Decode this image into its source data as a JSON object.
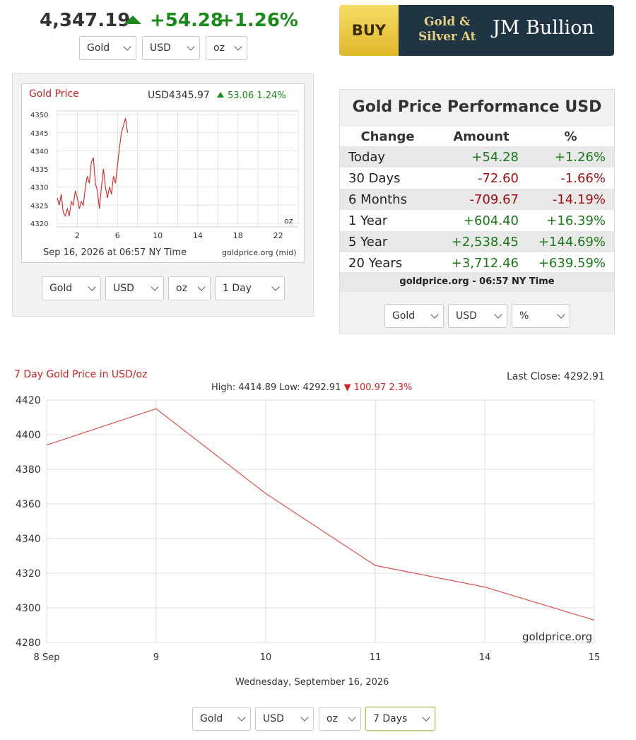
{
  "ticker": {
    "price": "4,347.19",
    "change": "+54.28",
    "change_pct": "+1.26%",
    "direction": "up"
  },
  "top_selects": {
    "metal": "Gold",
    "currency": "USD",
    "unit": "oz"
  },
  "ad": {
    "buy": "BUY",
    "line1": "Gold &",
    "line2": "Silver At",
    "brand": "JM Bullion"
  },
  "intraday_chart": {
    "title": "Gold Price",
    "quote": "USD4345.97",
    "quote_change": "53.06 1.24%",
    "date_label": "Sep 16, 2026 at 06:57 NY Time",
    "source": "goldprice.org (mid)",
    "unit_label": "oz",
    "selects": {
      "metal": "Gold",
      "currency": "USD",
      "unit": "oz",
      "range": "1 Day"
    }
  },
  "performance": {
    "title": "Gold Price Performance USD",
    "headers": [
      "Change",
      "Amount",
      "%"
    ],
    "rows": [
      {
        "label": "Today",
        "amount": "+54.28",
        "pct": "+1.26%",
        "dir": "pos"
      },
      {
        "label": "30 Days",
        "amount": "-72.60",
        "pct": "-1.66%",
        "dir": "neg"
      },
      {
        "label": "6 Months",
        "amount": "-709.67",
        "pct": "-14.19%",
        "dir": "neg"
      },
      {
        "label": "1 Year",
        "amount": "+604.40",
        "pct": "+16.39%",
        "dir": "pos"
      },
      {
        "label": "5 Year",
        "amount": "+2,538.45",
        "pct": "+144.69%",
        "dir": "pos"
      },
      {
        "label": "20 Years",
        "amount": "+3,712.46",
        "pct": "+639.59%",
        "dir": "pos"
      }
    ],
    "footer": "goldprice.org - 06:57 NY Time",
    "selects": {
      "metal": "Gold",
      "currency": "USD",
      "mode": "%"
    }
  },
  "week_chart": {
    "title": "7 Day Gold Price in USD/oz",
    "last_close": "Last Close: 4292.91",
    "high_low": "High: 4414.89 Low: 4292.91",
    "change": "100.97 2.3%",
    "xlabel": "Wednesday, September 16, 2026",
    "watermark": "goldprice.org",
    "selects": {
      "metal": "Gold",
      "currency": "USD",
      "unit": "oz",
      "range": "7 Days"
    }
  },
  "chart_data": [
    {
      "type": "line",
      "title": "Gold Price",
      "x_ticks": [
        "2",
        "6",
        "10",
        "14",
        "18",
        "22"
      ],
      "y_ticks": [
        "4320",
        "4325",
        "4330",
        "4335",
        "4340",
        "4345",
        "4350"
      ],
      "xlim": [
        0,
        24
      ],
      "ylim": [
        4319,
        4351
      ],
      "x": [
        0.0,
        0.2,
        0.4,
        0.6,
        0.8,
        1.0,
        1.2,
        1.4,
        1.6,
        1.8,
        2.0,
        2.2,
        2.4,
        2.6,
        2.8,
        3.0,
        3.2,
        3.4,
        3.6,
        3.8,
        4.0,
        4.2,
        4.4,
        4.6,
        4.8,
        5.0,
        5.2,
        5.4,
        5.6,
        5.8,
        6.0,
        6.2,
        6.4,
        6.6,
        6.8,
        7.0
      ],
      "y": [
        4327,
        4325,
        4328,
        4323,
        4322,
        4324,
        4322,
        4326,
        4325,
        4329,
        4327,
        4324,
        4326,
        4325,
        4330,
        4333,
        4331,
        4337,
        4338,
        4331,
        4329,
        4324,
        4330,
        4335,
        4330,
        4327,
        4330,
        4328,
        4333,
        4331,
        4336,
        4341,
        4345,
        4347,
        4349,
        4345
      ],
      "series_color": "#e02020",
      "grid": true
    },
    {
      "type": "line",
      "title": "7 Day Gold Price in USD/oz",
      "x_ticks": [
        "8 Sep",
        "9",
        "10",
        "11",
        "14",
        "15"
      ],
      "x": [
        0,
        1,
        2,
        3,
        4,
        5
      ],
      "y": [
        4394,
        4415,
        4366,
        4324.5,
        4312,
        4292.91
      ],
      "y_ticks": [
        "4280",
        "4300",
        "4320",
        "4340",
        "4360",
        "4380",
        "4400",
        "4420"
      ],
      "ylim": [
        4280,
        4420
      ],
      "xlabel": "Wednesday, September 16, 2026",
      "series_color": "#e05050",
      "grid": true
    }
  ]
}
